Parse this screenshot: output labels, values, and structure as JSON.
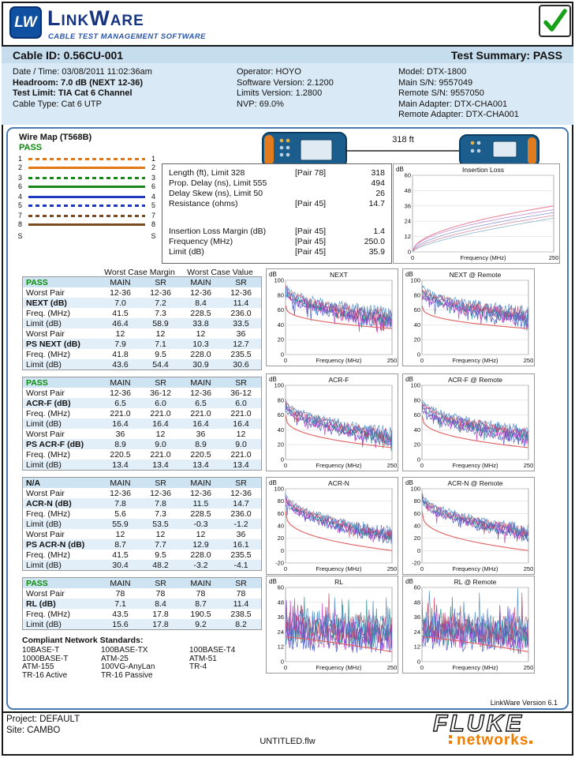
{
  "colors": {
    "pass_green": "#0a8a0a",
    "panel_border": "#4a7ab5",
    "title_bar_bg": "#c6ddee",
    "info_bg": "#d9e9f5",
    "limit_red": "#e06060"
  },
  "header": {
    "logo_initials": "LW",
    "brand": "LinkWare",
    "brand_sub": "CABLE TEST MANAGEMENT SOFTWARE"
  },
  "title_bar": {
    "cable_id": "Cable ID: 0.56CU-001",
    "summary": "Test Summary: PASS"
  },
  "info": {
    "col1": [
      {
        "text": "Date / Time: 03/08/2011 11:02:36am",
        "bold": false
      },
      {
        "text": "Headroom: 7.0 dB (NEXT 12-36)",
        "bold": true
      },
      {
        "text": "Test Limit: TIA Cat 6 Channel",
        "bold": true
      },
      {
        "text": "Cable Type: Cat 6 UTP",
        "bold": false
      }
    ],
    "col2": [
      {
        "text": "Operator: HOYO",
        "bold": false
      },
      {
        "text": "Software Version: 2.1200",
        "bold": false
      },
      {
        "text": "Limits Version: 1.2800",
        "bold": false
      },
      {
        "text": "NVP: 69.0%",
        "bold": false
      }
    ],
    "col3": [
      {
        "text": "Model: DTX-1800",
        "bold": false
      },
      {
        "text": "Main S/N: 9557049",
        "bold": false
      },
      {
        "text": "Remote S/N: 9557050",
        "bold": false
      },
      {
        "text": "Main Adapter: DTX-CHA001",
        "bold": false
      },
      {
        "text": "Remote Adapter: DTX-CHA001",
        "bold": false
      }
    ]
  },
  "wire_map": {
    "title": "Wire Map (T568B)",
    "status": "PASS",
    "rows": [
      {
        "pin": "1",
        "hex": "#e07818",
        "striped": true
      },
      {
        "pin": "2",
        "hex": "#e07818",
        "striped": false
      },
      {
        "pin": "3",
        "hex": "#188818",
        "striped": true
      },
      {
        "pin": "6",
        "hex": "#188818",
        "striped": false
      },
      {
        "pin": "4",
        "hex": "#2038c0",
        "striped": false
      },
      {
        "pin": "5",
        "hex": "#2038c0",
        "striped": true
      },
      {
        "pin": "7",
        "hex": "#7a4a20",
        "striped": true
      },
      {
        "pin": "8",
        "hex": "#7a4a20",
        "striped": false
      },
      {
        "pin": "S",
        "hex": "",
        "striped": false,
        "no_wire": true
      }
    ]
  },
  "link": {
    "length_label": "318 ft"
  },
  "length_table": {
    "rows": [
      {
        "label": "Length (ft), Limit 328",
        "pair": "[Pair 78]",
        "value": "318"
      },
      {
        "label": "Prop. Delay (ns), Limit 555",
        "pair": "",
        "value": "494"
      },
      {
        "label": "Delay Skew (ns), Limit 50",
        "pair": "",
        "value": "26"
      },
      {
        "label": "Resistance (ohms)",
        "pair": "[Pair 45]",
        "value": "14.7"
      },
      {
        "spacer": true
      },
      {
        "label": "Insertion Loss Margin (dB)",
        "pair": "[Pair 45]",
        "value": "1.4"
      },
      {
        "label": "Frequency (MHz)",
        "pair": "[Pair 45]",
        "value": "250.0"
      },
      {
        "label": "Limit (dB)",
        "pair": "[Pair 45]",
        "value": "35.9"
      }
    ]
  },
  "result_header": {
    "margin": "Worst Case Margin",
    "value": "Worst Case Value"
  },
  "result_tables": [
    {
      "name": "next",
      "status": "PASS",
      "col_headers": [
        "MAIN",
        "SR",
        "MAIN",
        "SR"
      ],
      "rows": [
        {
          "label": "Worst Pair",
          "bold": false,
          "values": [
            "12-36",
            "12-36",
            "12-36",
            "12-36"
          ]
        },
        {
          "label": "NEXT (dB)",
          "bold": true,
          "values": [
            "7.0",
            "7.2",
            "8.4",
            "11.4"
          ]
        },
        {
          "label": "Freq. (MHz)",
          "bold": false,
          "values": [
            "41.5",
            "7.3",
            "228.5",
            "236.0"
          ]
        },
        {
          "label": "Limit (dB)",
          "bold": false,
          "values": [
            "46.4",
            "58.9",
            "33.8",
            "33.5"
          ]
        },
        {
          "label": "Worst Pair",
          "bold": false,
          "values": [
            "12",
            "12",
            "12",
            "36"
          ]
        },
        {
          "label": "PS NEXT (dB)",
          "bold": true,
          "values": [
            "7.9",
            "7.1",
            "10.3",
            "12.7"
          ]
        },
        {
          "label": "Freq. (MHz)",
          "bold": false,
          "values": [
            "41.8",
            "9.5",
            "228.0",
            "235.5"
          ]
        },
        {
          "label": "Limit (dB)",
          "bold": false,
          "values": [
            "43.6",
            "54.4",
            "30.9",
            "30.6"
          ]
        }
      ]
    },
    {
      "name": "acr-f",
      "status": "PASS",
      "col_headers": [
        "MAIN",
        "SR",
        "MAIN",
        "SR"
      ],
      "rows": [
        {
          "label": "Worst Pair",
          "bold": false,
          "values": [
            "12-36",
            "36-12",
            "12-36",
            "36-12"
          ]
        },
        {
          "label": "ACR-F (dB)",
          "bold": true,
          "values": [
            "6.5",
            "6.0",
            "6.5",
            "6.0"
          ]
        },
        {
          "label": "Freq. (MHz)",
          "bold": false,
          "values": [
            "221.0",
            "221.0",
            "221.0",
            "221.0"
          ]
        },
        {
          "label": "Limit (dB)",
          "bold": false,
          "values": [
            "16.4",
            "16.4",
            "16.4",
            "16.4"
          ]
        },
        {
          "label": "Worst Pair",
          "bold": false,
          "values": [
            "36",
            "12",
            "36",
            "12"
          ]
        },
        {
          "label": "PS ACR-F (dB)",
          "bold": true,
          "values": [
            "8.9",
            "9.0",
            "8.9",
            "9.0"
          ]
        },
        {
          "label": "Freq. (MHz)",
          "bold": false,
          "values": [
            "220.5",
            "221.0",
            "220.5",
            "221.0"
          ]
        },
        {
          "label": "Limit (dB)",
          "bold": false,
          "values": [
            "13.4",
            "13.4",
            "13.4",
            "13.4"
          ]
        }
      ]
    },
    {
      "name": "acr-n",
      "status": "N/A",
      "col_headers": [
        "MAIN",
        "SR",
        "MAIN",
        "SR"
      ],
      "rows": [
        {
          "label": "Worst Pair",
          "bold": false,
          "values": [
            "12-36",
            "12-36",
            "12-36",
            "12-36"
          ]
        },
        {
          "label": "ACR-N (dB)",
          "bold": true,
          "values": [
            "7.8",
            "7.8",
            "11.5",
            "14.7"
          ]
        },
        {
          "label": "Freq. (MHz)",
          "bold": false,
          "values": [
            "5.6",
            "7.3",
            "228.5",
            "236.0"
          ]
        },
        {
          "label": "Limit (dB)",
          "bold": false,
          "values": [
            "55.9",
            "53.5",
            "-0.3",
            "-1.2"
          ]
        },
        {
          "label": "Worst Pair",
          "bold": false,
          "values": [
            "12",
            "12",
            "12",
            "36"
          ]
        },
        {
          "label": "PS ACR-N (dB)",
          "bold": true,
          "values": [
            "8.7",
            "7.7",
            "12.9",
            "16.1"
          ]
        },
        {
          "label": "Freq. (MHz)",
          "bold": false,
          "values": [
            "41.5",
            "9.5",
            "228.0",
            "235.5"
          ]
        },
        {
          "label": "Limit (dB)",
          "bold": false,
          "values": [
            "30.4",
            "48.2",
            "-3.2",
            "-4.1"
          ]
        }
      ]
    },
    {
      "name": "rl",
      "status": "PASS",
      "col_headers": [
        "MAIN",
        "SR",
        "MAIN",
        "SR"
      ],
      "rows": [
        {
          "label": "Worst Pair",
          "bold": false,
          "values": [
            "78",
            "78",
            "78",
            "78"
          ]
        },
        {
          "label": "RL (dB)",
          "bold": true,
          "values": [
            "7.1",
            "8.4",
            "8.7",
            "11.4"
          ]
        },
        {
          "label": "Freq. (MHz)",
          "bold": false,
          "values": [
            "43.5",
            "17.8",
            "190.5",
            "238.5"
          ]
        },
        {
          "label": "Limit (dB)",
          "bold": false,
          "values": [
            "15.6",
            "17.8",
            "9.2",
            "8.2"
          ]
        }
      ]
    }
  ],
  "standards": {
    "title": "Compliant Network Standards:",
    "cols": [
      [
        "10BASE-T",
        "1000BASE-T",
        "ATM-155",
        "TR-16 Active"
      ],
      [
        "100BASE-TX",
        "ATM-25",
        "100VG-AnyLan",
        "TR-16 Passive"
      ],
      [
        "100BASE-T4",
        "ATM-51",
        "TR-4"
      ]
    ]
  },
  "footer": {
    "version": "LinkWare Version  6.1",
    "project": "Project: DEFAULT",
    "site": "Site: CAMBO",
    "filename": "UNTITLED.flw",
    "fluke": "FLUKE",
    "networks": "networks"
  },
  "chart_data": [
    {
      "id": "insertion-loss",
      "type": "line",
      "title": "Insertion Loss",
      "ylabel": "dB",
      "xlabel": "Frequency (MHz)",
      "x_range": [
        0,
        250
      ],
      "ylim": [
        0,
        60
      ],
      "yticks": [
        60,
        48,
        36,
        24,
        12,
        0
      ],
      "kind": "smooth-rise",
      "seed": 11,
      "trace_end": 33,
      "limit": {
        "start": 0,
        "end": 36
      },
      "limit_color": "#e8889a",
      "trace_colors": [
        "#b070c8",
        "#7080c8",
        "#c87090",
        "#70a0c8"
      ]
    },
    {
      "id": "next",
      "type": "line",
      "title": "NEXT",
      "ylabel": "dB",
      "xlabel": "Frequency (MHz)",
      "x_range": [
        0,
        250
      ],
      "ylim": [
        0,
        100
      ],
      "yticks": [
        100,
        80,
        60,
        40,
        20,
        0
      ],
      "kind": "noisy-fall",
      "seed": 2,
      "noise": {
        "start": 88,
        "end": 48,
        "amp": 11
      },
      "limit": {
        "start": 66,
        "end": 35
      },
      "limit_color": "#e06060",
      "trace_colors": [
        "#3a4ec2",
        "#c23ac2",
        "#18908c",
        "#7a3ac2",
        "#c24a66",
        "#4a88c2"
      ]
    },
    {
      "id": "next-remote",
      "type": "line",
      "title": "NEXT @ Remote",
      "ylabel": "dB",
      "xlabel": "Frequency (MHz)",
      "x_range": [
        0,
        250
      ],
      "ylim": [
        0,
        100
      ],
      "yticks": [
        100,
        80,
        60,
        40,
        20,
        0
      ],
      "kind": "noisy-fall",
      "seed": 3,
      "noise": {
        "start": 88,
        "end": 50,
        "amp": 11
      },
      "limit": {
        "start": 66,
        "end": 35
      },
      "limit_color": "#e06060",
      "trace_colors": [
        "#3a4ec2",
        "#c23ac2",
        "#18908c",
        "#7a3ac2",
        "#c24a66",
        "#4a88c2"
      ]
    },
    {
      "id": "acr-f",
      "type": "line",
      "title": "ACR-F",
      "ylabel": "dB",
      "xlabel": "Frequency (MHz)",
      "x_range": [
        0,
        250
      ],
      "ylim": [
        0,
        100
      ],
      "yticks": [
        100,
        80,
        60,
        40,
        20,
        0
      ],
      "kind": "noisy-fall",
      "seed": 4,
      "noise": {
        "start": 76,
        "end": 30,
        "amp": 9
      },
      "limit": {
        "start": 60,
        "end": 16
      },
      "limit_color": "#e06060",
      "trace_colors": [
        "#3a4ec2",
        "#c23ac2",
        "#18908c",
        "#7a3ac2",
        "#c24a66",
        "#4a88c2"
      ]
    },
    {
      "id": "acr-f-remote",
      "type": "line",
      "title": "ACR-F @ Remote",
      "ylabel": "dB",
      "xlabel": "Frequency (MHz)",
      "x_range": [
        0,
        250
      ],
      "ylim": [
        0,
        100
      ],
      "yticks": [
        100,
        80,
        60,
        40,
        20,
        0
      ],
      "kind": "noisy-fall",
      "seed": 5,
      "noise": {
        "start": 76,
        "end": 32,
        "amp": 9
      },
      "limit": {
        "start": 60,
        "end": 16
      },
      "limit_color": "#e06060",
      "trace_colors": [
        "#3a4ec2",
        "#c23ac2",
        "#18908c",
        "#7a3ac2",
        "#c24a66",
        "#4a88c2"
      ]
    },
    {
      "id": "acr-n",
      "type": "line",
      "title": "ACR-N",
      "ylabel": "dB",
      "xlabel": "Frequency (MHz)",
      "x_range": [
        0,
        250
      ],
      "ylim": [
        -20,
        100
      ],
      "yticks": [
        100,
        80,
        60,
        40,
        20,
        0,
        -20
      ],
      "kind": "noisy-fall",
      "seed": 6,
      "noise": {
        "start": 88,
        "end": 24,
        "amp": 10
      },
      "limit": {
        "start": 64,
        "end": 0
      },
      "limit_color": "#e06060",
      "trace_colors": [
        "#3a4ec2",
        "#c23ac2",
        "#18908c",
        "#7a3ac2",
        "#c24a66",
        "#4a88c2"
      ]
    },
    {
      "id": "acr-n-remote",
      "type": "line",
      "title": "ACR-N @ Remote",
      "ylabel": "dB",
      "xlabel": "Frequency (MHz)",
      "x_range": [
        0,
        250
      ],
      "ylim": [
        -20,
        100
      ],
      "yticks": [
        100,
        80,
        60,
        40,
        20,
        0,
        -20
      ],
      "kind": "noisy-fall",
      "seed": 7,
      "noise": {
        "start": 88,
        "end": 28,
        "amp": 10
      },
      "limit": {
        "start": 64,
        "end": 0
      },
      "limit_color": "#e06060",
      "trace_colors": [
        "#3a4ec2",
        "#c23ac2",
        "#18908c",
        "#7a3ac2",
        "#c24a66",
        "#4a88c2"
      ]
    },
    {
      "id": "rl",
      "type": "line",
      "title": "RL",
      "ylabel": "dB",
      "xlabel": "Frequency (MHz)",
      "x_range": [
        0,
        250
      ],
      "ylim": [
        0,
        60
      ],
      "yticks": [
        60,
        48,
        36,
        24,
        12,
        0
      ],
      "kind": "noisy-rl",
      "seed": 8,
      "noise": {
        "start": 26,
        "end": 22,
        "amp": 11
      },
      "limit": {
        "start": 20,
        "end": 8
      },
      "limit_color": "#e06060",
      "trace_colors": [
        "#3a4ec2",
        "#c23ac2",
        "#18908c",
        "#7a3ac2",
        "#c24a66",
        "#4a88c2"
      ]
    },
    {
      "id": "rl-remote",
      "type": "line",
      "title": "RL @ Remote",
      "ylabel": "dB",
      "xlabel": "Frequency (MHz)",
      "x_range": [
        0,
        250
      ],
      "ylim": [
        0,
        60
      ],
      "yticks": [
        60,
        48,
        36,
        24,
        12,
        0
      ],
      "kind": "noisy-rl",
      "seed": 9,
      "noise": {
        "start": 26,
        "end": 22,
        "amp": 11
      },
      "limit": {
        "start": 20,
        "end": 8
      },
      "limit_color": "#e06060",
      "trace_colors": [
        "#3a4ec2",
        "#c23ac2",
        "#18908c",
        "#7a3ac2",
        "#c24a66",
        "#4a88c2"
      ]
    }
  ]
}
